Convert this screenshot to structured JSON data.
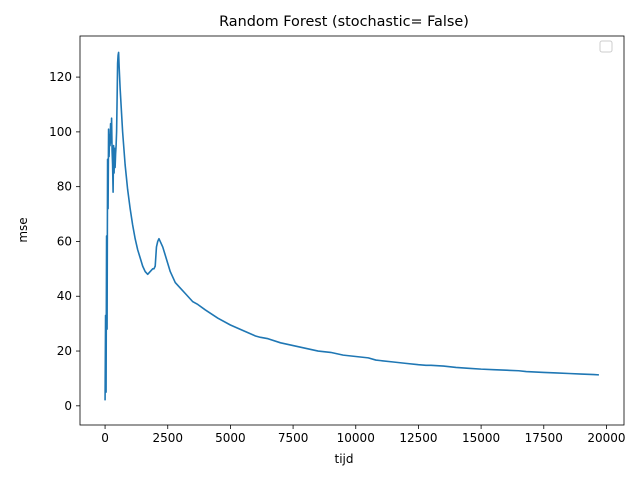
{
  "chart_data": {
    "type": "line",
    "title": "Random Forest (stochastic= False)",
    "xlabel": "tijd",
    "ylabel": "mse",
    "xlim": [
      -1000,
      20700
    ],
    "ylim": [
      -7,
      135
    ],
    "x_ticks": [
      0,
      2500,
      5000,
      7500,
      10000,
      12500,
      15000,
      17500,
      20000
    ],
    "x_tick_labels": [
      "0",
      "2500",
      "5000",
      "7500",
      "10000",
      "12500",
      "15000",
      "17500",
      "20000"
    ],
    "y_ticks": [
      0,
      20,
      40,
      60,
      80,
      100,
      120
    ],
    "y_tick_labels": [
      "0",
      "20",
      "40",
      "60",
      "80",
      "100",
      "120"
    ],
    "grid": false,
    "legend": "top-right (empty)",
    "series": [
      {
        "color": "#1f77b4",
        "x": [
          0,
          20,
          40,
          60,
          80,
          100,
          120,
          140,
          160,
          180,
          200,
          220,
          240,
          260,
          280,
          300,
          320,
          340,
          360,
          380,
          400,
          420,
          440,
          460,
          480,
          500,
          520,
          540,
          560,
          600,
          650,
          700,
          800,
          900,
          1000,
          1100,
          1200,
          1300,
          1400,
          1500,
          1600,
          1700,
          1800,
          1900,
          1950,
          2000,
          2050,
          2100,
          2150,
          2200,
          2250,
          2300,
          2400,
          2500,
          2600,
          2700,
          2800,
          3000,
          3200,
          3400,
          3500,
          3700,
          4000,
          4500,
          5000,
          5500,
          6000,
          6200,
          6500,
          7000,
          7500,
          8000,
          8500,
          9000,
          9500,
          10000,
          10500,
          10800,
          11000,
          11500,
          12000,
          12500,
          12800,
          13000,
          13500,
          14000,
          14500,
          15000,
          15500,
          16000,
          16500,
          16800,
          17000,
          17500,
          18000,
          18500,
          19000,
          19500,
          19700
        ],
        "y": [
          2,
          33,
          5,
          62,
          28,
          90,
          72,
          101,
          91,
          99,
          95,
          103,
          96,
          105,
          93,
          88,
          78,
          95,
          85,
          94,
          87,
          92,
          95,
          100,
          112,
          125,
          128,
          129,
          124,
          116,
          108,
          100,
          88,
          79,
          72,
          66,
          61,
          57,
          54,
          51,
          49,
          48,
          49,
          50,
          50,
          51,
          58,
          60,
          61,
          60,
          59,
          58,
          55,
          52,
          49,
          47,
          45,
          43,
          41,
          39,
          38,
          37,
          35,
          32,
          29.5,
          27.5,
          25.5,
          25,
          24.5,
          23,
          22,
          21,
          20,
          19.5,
          18.5,
          18,
          17.5,
          16.7,
          16.5,
          16,
          15.5,
          15,
          14.8,
          14.8,
          14.5,
          14,
          13.7,
          13.4,
          13.2,
          13,
          12.8,
          12.5,
          12.4,
          12.2,
          12,
          11.8,
          11.6,
          11.4,
          11.3
        ]
      }
    ]
  }
}
